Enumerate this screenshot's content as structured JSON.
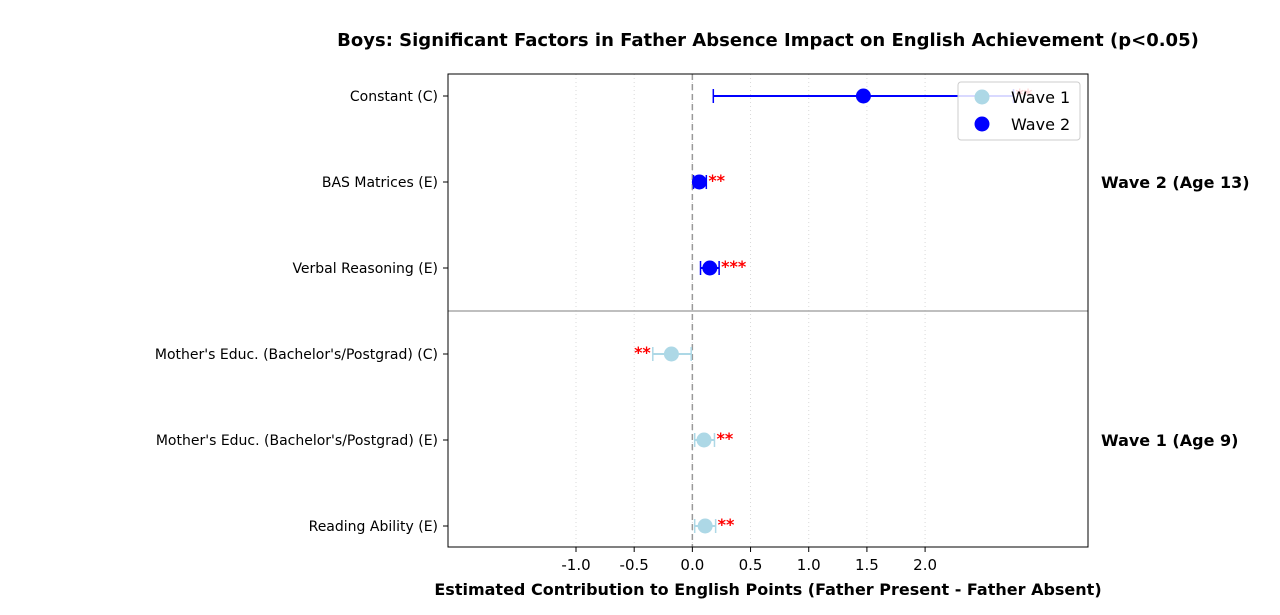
{
  "chart_data": {
    "type": "scatter",
    "title": "Boys: Significant Factors in Father Absence Impact on English Achievement (p<0.05)",
    "xlabel": "Estimated Contribution to English Points (Father Present - Father Absent)",
    "ylabel": "",
    "xlim": [
      -2.1,
      3.4
    ],
    "x_ticks": [
      "-1.0",
      "-0.5",
      "0.0",
      "0.5",
      "1.0",
      "1.5",
      "2.0"
    ],
    "x_tick_values": [
      -1.0,
      -0.5,
      0.0,
      0.5,
      1.0,
      1.5,
      2.0
    ],
    "grid": "x-dotted",
    "reference_line_x": 0,
    "legend_position": "top-right",
    "groups": [
      {
        "label": "Wave 2 (Age 13)",
        "rows": [
          "Constant (C)",
          "BAS Matrices (E)",
          "Verbal Reasoning (E)"
        ]
      },
      {
        "label": "Wave 1 (Age 9)",
        "rows": [
          "Mother's Educ. (Bachelor's/Postgrad) (C)",
          "Mother's Educ. (Bachelor's/Postgrad) (E)",
          "Reading Ability (E)"
        ]
      }
    ],
    "series": [
      {
        "name": "Wave 1",
        "color": "#add8e6",
        "points": [
          {
            "label": "Mother's Educ. (Bachelor's/Postgrad) (C)",
            "x": -0.18,
            "lo": -0.34,
            "hi": -0.01,
            "sig": "**",
            "sig_side": "left"
          },
          {
            "label": "Mother's Educ. (Bachelor's/Postgrad) (E)",
            "x": 0.1,
            "lo": 0.02,
            "hi": 0.19,
            "sig": "**",
            "sig_side": "right"
          },
          {
            "label": "Reading Ability (E)",
            "x": 0.11,
            "lo": 0.02,
            "hi": 0.2,
            "sig": "**",
            "sig_side": "right"
          }
        ]
      },
      {
        "name": "Wave 2",
        "color": "#0000ff",
        "points": [
          {
            "label": "Constant (C)",
            "x": 1.47,
            "lo": 0.18,
            "hi": 2.76,
            "sig": "**",
            "sig_side": "right"
          },
          {
            "label": "BAS Matrices (E)",
            "x": 0.06,
            "lo": 0.01,
            "hi": 0.12,
            "sig": "**",
            "sig_side": "right"
          },
          {
            "label": "Verbal Reasoning (E)",
            "x": 0.15,
            "lo": 0.07,
            "hi": 0.23,
            "sig": "***",
            "sig_side": "right"
          }
        ]
      }
    ]
  }
}
